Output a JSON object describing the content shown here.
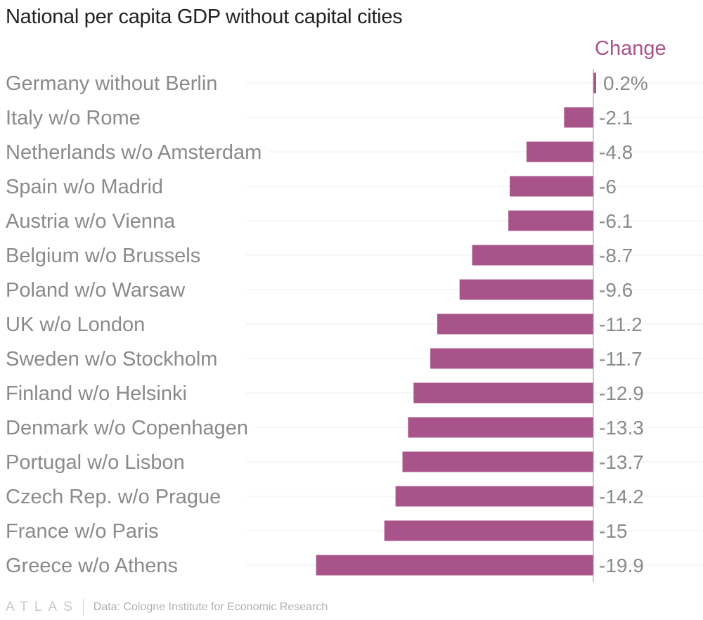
{
  "colors": {
    "bar": "#a8548a",
    "axis": "#9a9a9a",
    "header": "#a8548a"
  },
  "footer": {
    "logo_text": "ATLAS",
    "source": "Data: Cologne Institute for Economic Research"
  },
  "chart_data": {
    "type": "bar",
    "orientation": "horizontal",
    "title": "National per capita GDP without capital cities",
    "column_header": "Change",
    "unit_suffix_first": "%",
    "categories": [
      "Germany without Berlin",
      "Italy w/o Rome",
      "Netherlands w/o Amsterdam",
      "Spain w/o Madrid",
      "Austria w/o Vienna",
      "Belgium w/o Brussels",
      "Poland w/o Warsaw",
      "UK w/o London",
      "Sweden w/o Stockholm",
      "Finland w/o Helsinki",
      "Denmark w/o Copenhagen",
      "Portugal w/o Lisbon",
      "Czech Rep. w/o Prague",
      "France w/o Paris",
      "Greece w/o Athens"
    ],
    "values": [
      0.2,
      -2.1,
      -4.8,
      -6,
      -6.1,
      -8.7,
      -9.6,
      -11.2,
      -11.7,
      -12.9,
      -13.3,
      -13.7,
      -14.2,
      -15,
      -19.9
    ],
    "value_labels": [
      "0.2%",
      "-2.1",
      "-4.8",
      "-6",
      "-6.1",
      "-8.7",
      "-9.6",
      "-11.2",
      "-11.7",
      "-12.9",
      "-13.3",
      "-13.7",
      "-14.2",
      "-15",
      "-19.9"
    ],
    "xlim": [
      -19.9,
      0.2
    ],
    "xlabel": "",
    "ylabel": ""
  }
}
